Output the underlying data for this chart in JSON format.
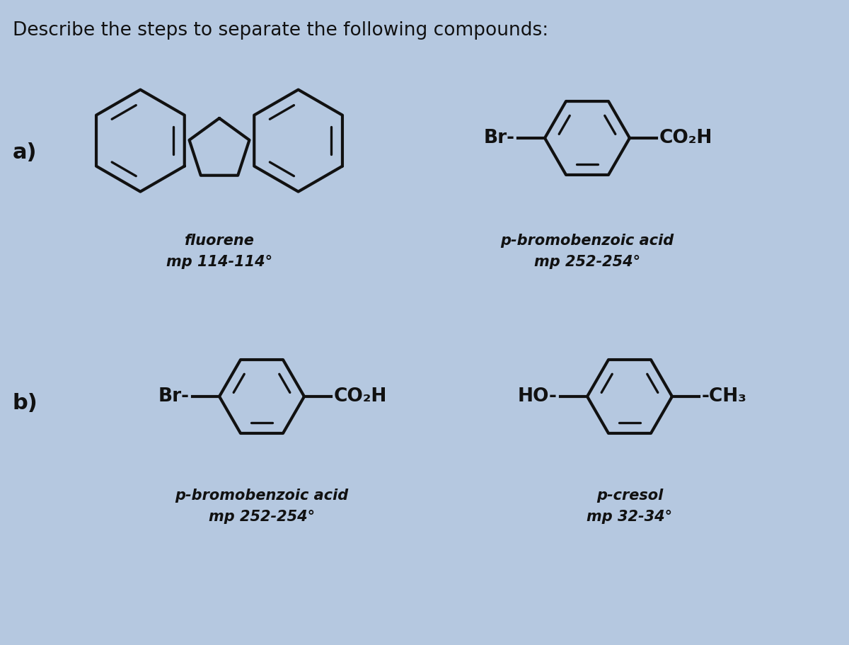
{
  "title": "Describe the steps to separate the following compounds:",
  "title_fontsize": 19,
  "background_color": "#b5c8e0",
  "text_color": "#111111",
  "label_a": "a)",
  "label_b": "b)",
  "fluorene_name": "fluorene",
  "fluorene_mp": "mp 114-114°",
  "pbromobenzoic_name": "p-bromobenzoic acid",
  "pbromobenzoic_mp1": "mp 252-254°",
  "pbromobenzoic_mp2": "mp 252-254°",
  "pcresol_name": "p-cresol",
  "pcresol_mp": "mp 32-34°",
  "struct_fontsize": 15,
  "label_fontsize": 22,
  "struct_lw": 3.0,
  "inner_lw": 2.5
}
